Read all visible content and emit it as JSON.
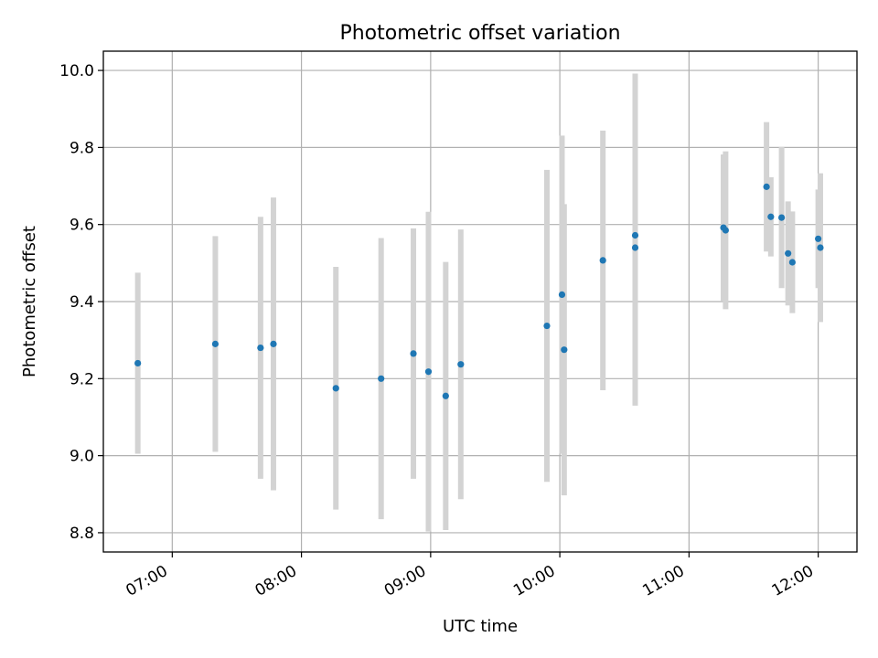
{
  "chart_data": {
    "type": "scatter",
    "title": "Photometric offset variation",
    "xlabel": "UTC time",
    "ylabel": "Photometric offset",
    "x_unit": "UTC",
    "xlim": [
      "06:28",
      "12:18"
    ],
    "ylim": [
      8.75,
      10.05
    ],
    "x_ticks": [
      "07:00",
      "08:00",
      "09:00",
      "10:00",
      "11:00",
      "12:00"
    ],
    "y_ticks": [
      "8.8",
      "9.0",
      "9.2",
      "9.4",
      "9.6",
      "9.8",
      "10.0"
    ],
    "grid": true,
    "marker_color": "#1f77b4",
    "errorbar_color": "#d3d3d3",
    "points": [
      {
        "t": "06:44",
        "y": 9.24,
        "err": 0.235
      },
      {
        "t": "07:20",
        "y": 9.29,
        "err": 0.28
      },
      {
        "t": "07:41",
        "y": 9.28,
        "err": 0.34
      },
      {
        "t": "07:47",
        "y": 9.29,
        "err": 0.38
      },
      {
        "t": "08:16",
        "y": 9.175,
        "err": 0.315
      },
      {
        "t": "08:37",
        "y": 9.2,
        "err": 0.365
      },
      {
        "t": "08:52",
        "y": 9.265,
        "err": 0.325
      },
      {
        "t": "08:59",
        "y": 9.218,
        "err": 0.415
      },
      {
        "t": "09:07",
        "y": 9.155,
        "err": 0.348
      },
      {
        "t": "09:14",
        "y": 9.237,
        "err": 0.35
      },
      {
        "t": "09:54",
        "y": 9.337,
        "err": 0.405
      },
      {
        "t": "10:01",
        "y": 9.418,
        "err": 0.413
      },
      {
        "t": "10:02",
        "y": 9.275,
        "err": 0.378
      },
      {
        "t": "10:20",
        "y": 9.507,
        "err": 0.337
      },
      {
        "t": "10:35",
        "y": 9.572,
        "err": 0.42
      },
      {
        "t": "10:35",
        "y": 9.54,
        "err": 0.41
      },
      {
        "t": "11:16",
        "y": 9.592,
        "err": 0.19
      },
      {
        "t": "11:17",
        "y": 9.585,
        "err": 0.205
      },
      {
        "t": "11:36",
        "y": 9.698,
        "err": 0.168
      },
      {
        "t": "11:38",
        "y": 9.62,
        "err": 0.103
      },
      {
        "t": "11:43",
        "y": 9.618,
        "err": 0.183
      },
      {
        "t": "11:46",
        "y": 9.525,
        "err": 0.135
      },
      {
        "t": "11:48",
        "y": 9.502,
        "err": 0.132
      },
      {
        "t": "12:00",
        "y": 9.563,
        "err": 0.128
      },
      {
        "t": "12:01",
        "y": 9.54,
        "err": 0.193
      }
    ]
  }
}
